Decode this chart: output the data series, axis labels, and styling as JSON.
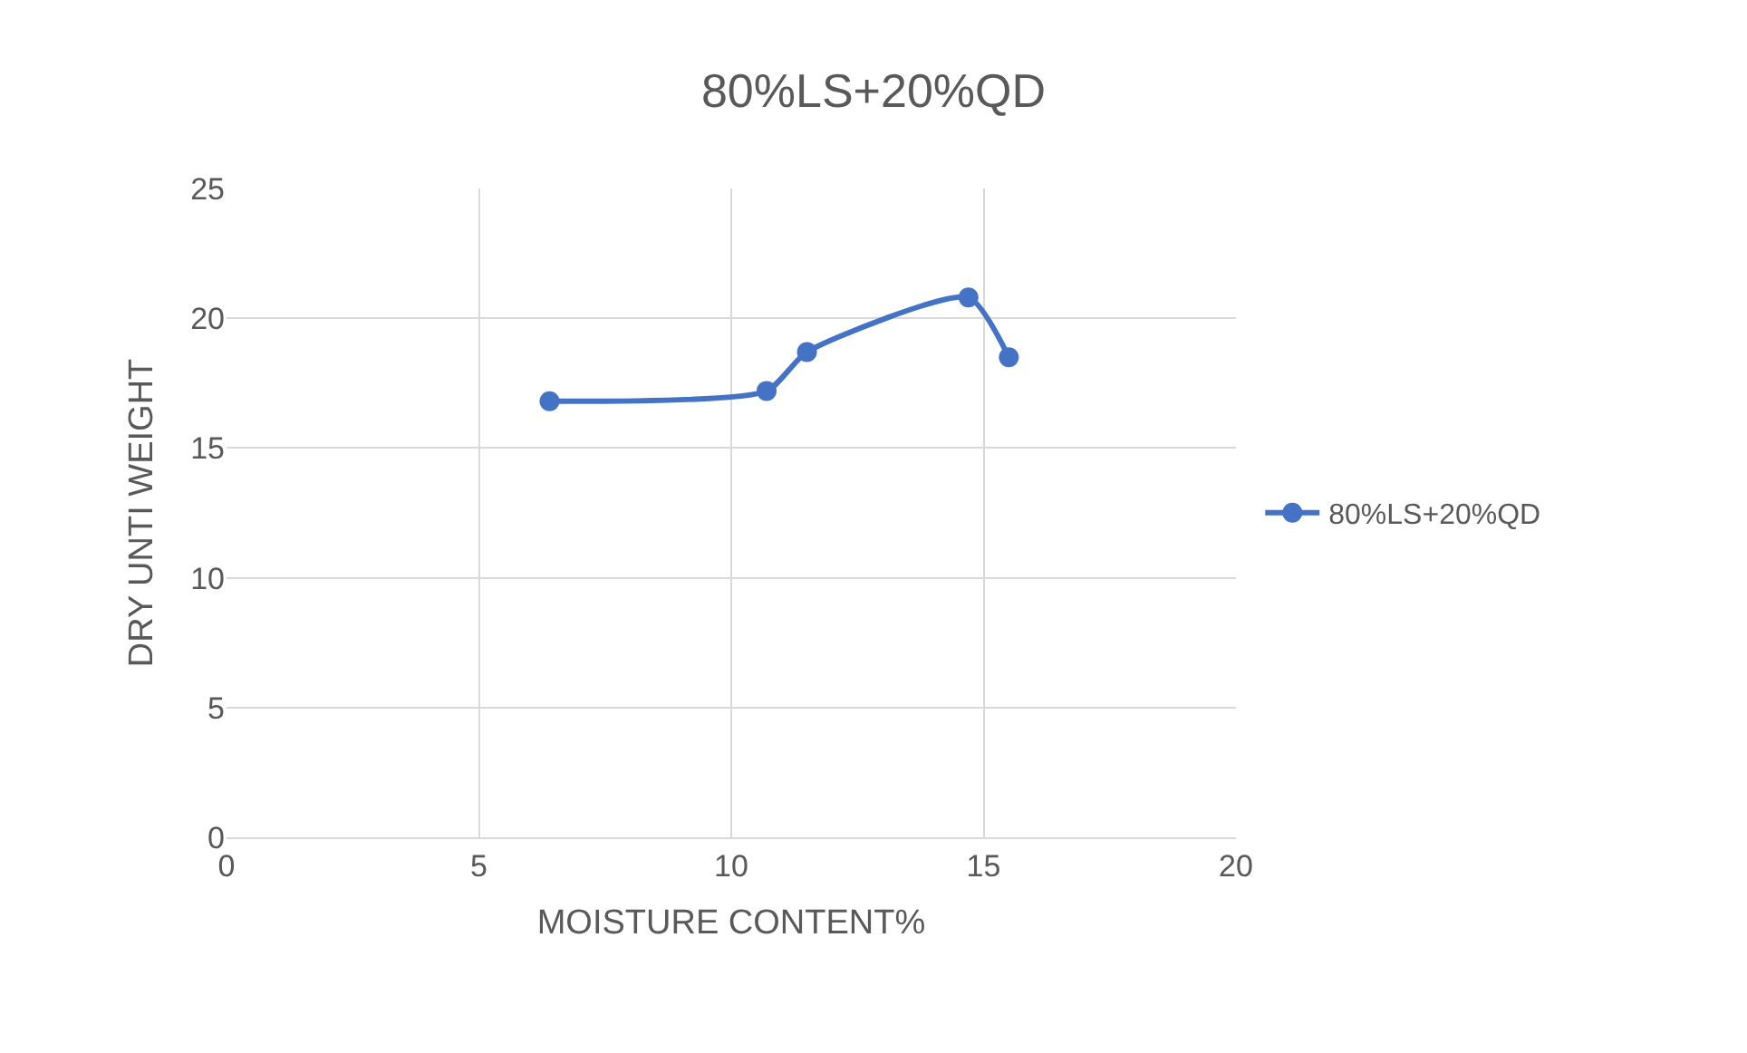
{
  "chart_data": {
    "type": "line",
    "title": "80%LS+20%QD",
    "xlabel": "MOISTURE CONTENT%",
    "ylabel": "DRY UNTI WEIGHT",
    "series": [
      {
        "name": "80%LS+20%QD",
        "color": "#4472c4",
        "x": [
          6.4,
          10.7,
          11.5,
          14.7,
          15.5
        ],
        "values": [
          16.8,
          17.2,
          18.7,
          20.8,
          18.5
        ]
      }
    ],
    "xlim": [
      0,
      20
    ],
    "xticks": [
      0,
      5,
      10,
      15,
      20
    ],
    "ylim": [
      0,
      25
    ],
    "yticks": [
      0,
      5,
      10,
      15,
      20,
      25
    ],
    "grid": true,
    "legend": "right",
    "marker": "circle",
    "line_style": "solid"
  }
}
